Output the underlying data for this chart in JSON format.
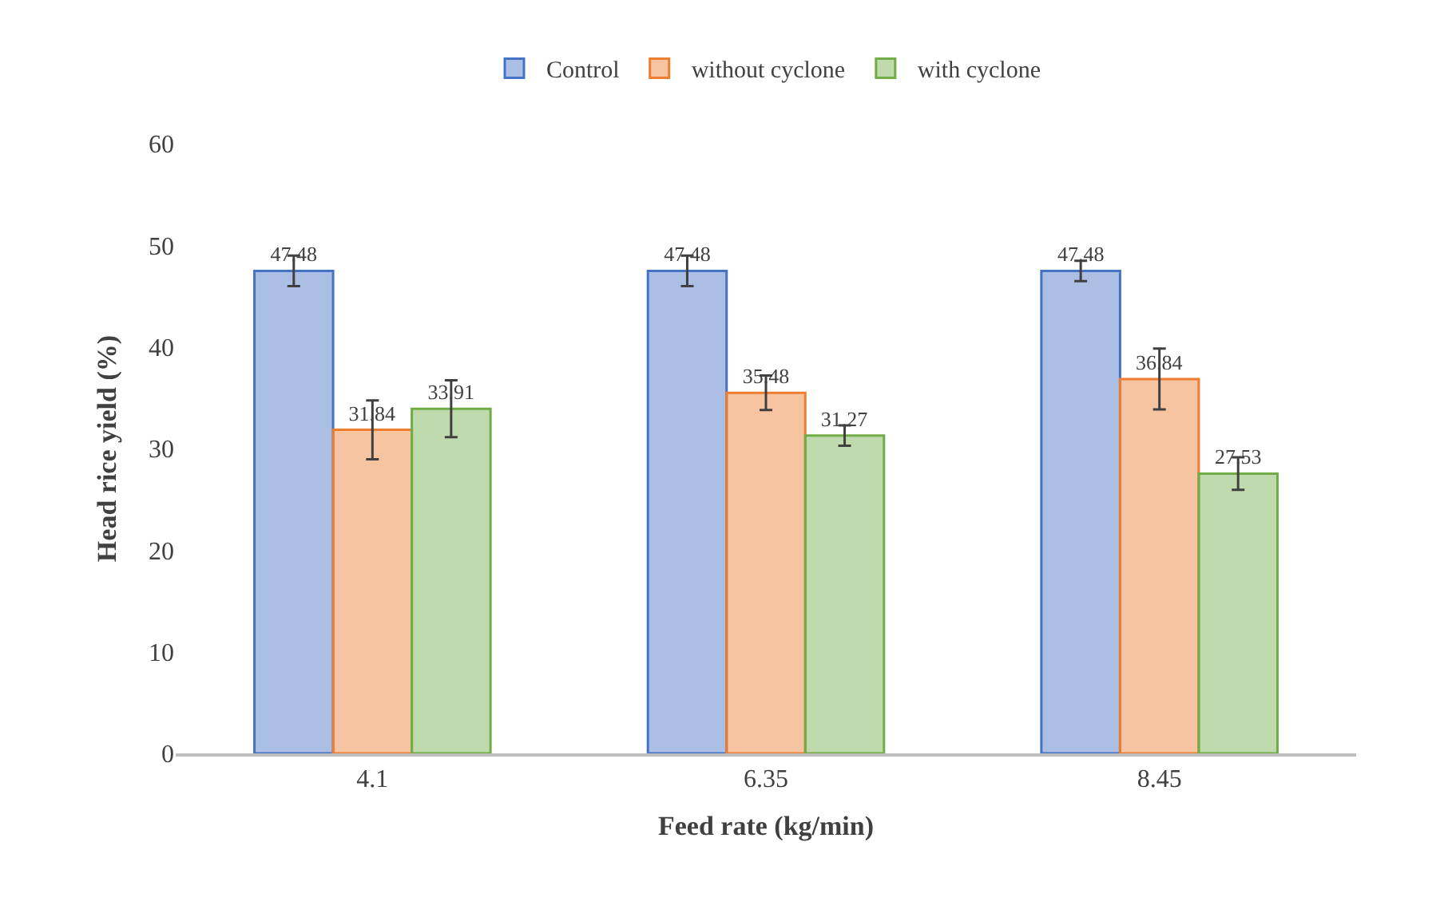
{
  "chart_data": {
    "type": "bar",
    "xlabel": "Feed rate (kg/min)",
    "ylabel": "Head rice yield (%)",
    "categories": [
      "4.1",
      "6.35",
      "8.45"
    ],
    "series": [
      {
        "name": "Control",
        "color": "#4472c4",
        "values": [
          47.48,
          47.48,
          47.48
        ],
        "errors": [
          1.5,
          1.5,
          1.0
        ]
      },
      {
        "name": "without cyclone",
        "color": "#ed7d31",
        "values": [
          31.84,
          35.48,
          36.84
        ],
        "errors": [
          2.9,
          1.7,
          3.0
        ]
      },
      {
        "name": "with cyclone",
        "color": "#70ad47",
        "values": [
          33.91,
          31.27,
          27.53
        ],
        "errors": [
          2.8,
          1.0,
          1.6
        ]
      }
    ],
    "ylim": [
      0,
      60
    ],
    "yticks": [
      0,
      10,
      20,
      30,
      40,
      50,
      60
    ],
    "legend": "top",
    "data_labels": true
  }
}
